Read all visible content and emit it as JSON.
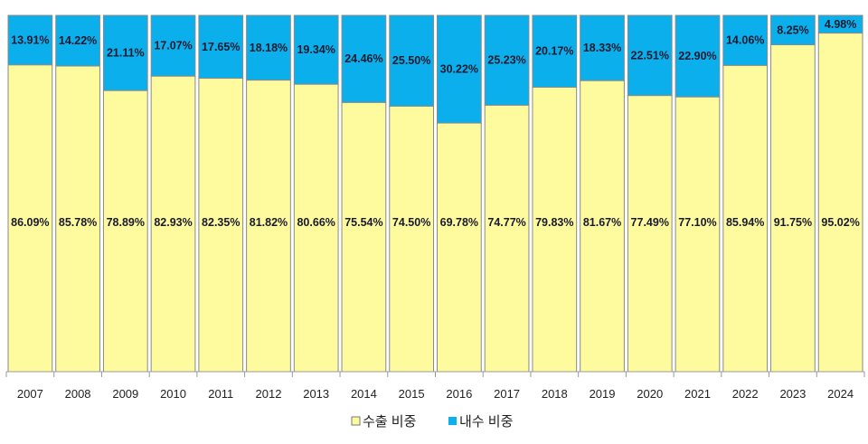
{
  "chart_data": {
    "type": "bar",
    "stacked": true,
    "percent_stacked": true,
    "categories": [
      "2007",
      "2008",
      "2009",
      "2010",
      "2011",
      "2012",
      "2013",
      "2014",
      "2015",
      "2016",
      "2017",
      "2018",
      "2019",
      "2020",
      "2021",
      "2022",
      "2023",
      "2024"
    ],
    "series": [
      {
        "name": "수출 비중",
        "color": "#FDFB9E",
        "values": [
          86.09,
          85.78,
          78.89,
          82.93,
          82.35,
          81.82,
          80.66,
          75.54,
          74.5,
          69.78,
          74.77,
          79.83,
          81.67,
          77.49,
          77.1,
          85.94,
          91.75,
          95.02
        ]
      },
      {
        "name": "내수 비중",
        "color": "#0AAFEC",
        "values": [
          13.91,
          14.22,
          21.11,
          17.07,
          17.65,
          18.18,
          19.34,
          24.46,
          25.5,
          30.22,
          25.23,
          20.17,
          18.33,
          22.51,
          22.9,
          14.06,
          8.25,
          4.98
        ]
      }
    ],
    "ylim": [
      0,
      100
    ],
    "legend": "bottom",
    "grid": false,
    "data_label_format": "0.00%"
  }
}
